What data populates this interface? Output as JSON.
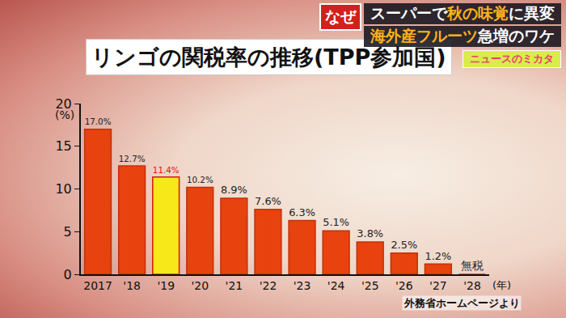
{
  "banner": {
    "badge": "なぜ",
    "lines": [
      [
        {
          "text": "スーパーで",
          "emphasis": false
        },
        {
          "text": "秋の味覚",
          "emphasis": true
        },
        {
          "text": "に異変",
          "emphasis": false
        }
      ],
      [
        {
          "text": "海外産フルーツ",
          "emphasis": true
        },
        {
          "text": "急増のワケ",
          "emphasis": false
        }
      ]
    ],
    "corner": "ニュースのミカタ"
  },
  "chart_data": {
    "type": "bar",
    "title": "リンゴの関税率の推移(TPP参加国)",
    "categories": [
      "2017",
      "'18",
      "'19",
      "'20",
      "'21",
      "'22",
      "'23",
      "'24",
      "'25",
      "'26",
      "'27",
      "'28"
    ],
    "values": [
      17.0,
      12.7,
      11.4,
      10.2,
      8.9,
      7.6,
      6.3,
      5.1,
      3.8,
      2.5,
      1.2,
      0
    ],
    "value_labels": [
      "17.0%",
      "12.7%",
      "11.4%",
      "10.2%",
      "8.9%",
      "7.6%",
      "6.3%",
      "5.1%",
      "3.8%",
      "2.5%",
      "1.2%",
      "無税"
    ],
    "color": "#e8430e",
    "colors": [
      "#e8430e",
      "#e8430e",
      "#f7e81a",
      "#e8430e",
      "#e8430e",
      "#e8430e",
      "#e8430e",
      "#e8430e",
      "#e8430e",
      "#e8430e",
      "#e8430e",
      "#e8430e"
    ],
    "xlabel": "(年)",
    "ylabel": "(%)",
    "ylim": [
      0,
      20
    ],
    "yticks": [
      0,
      5,
      10,
      15,
      20
    ],
    "grid": false,
    "data_labels": true,
    "annotations": [
      {
        "text": "外務省ホームページより"
      }
    ]
  }
}
